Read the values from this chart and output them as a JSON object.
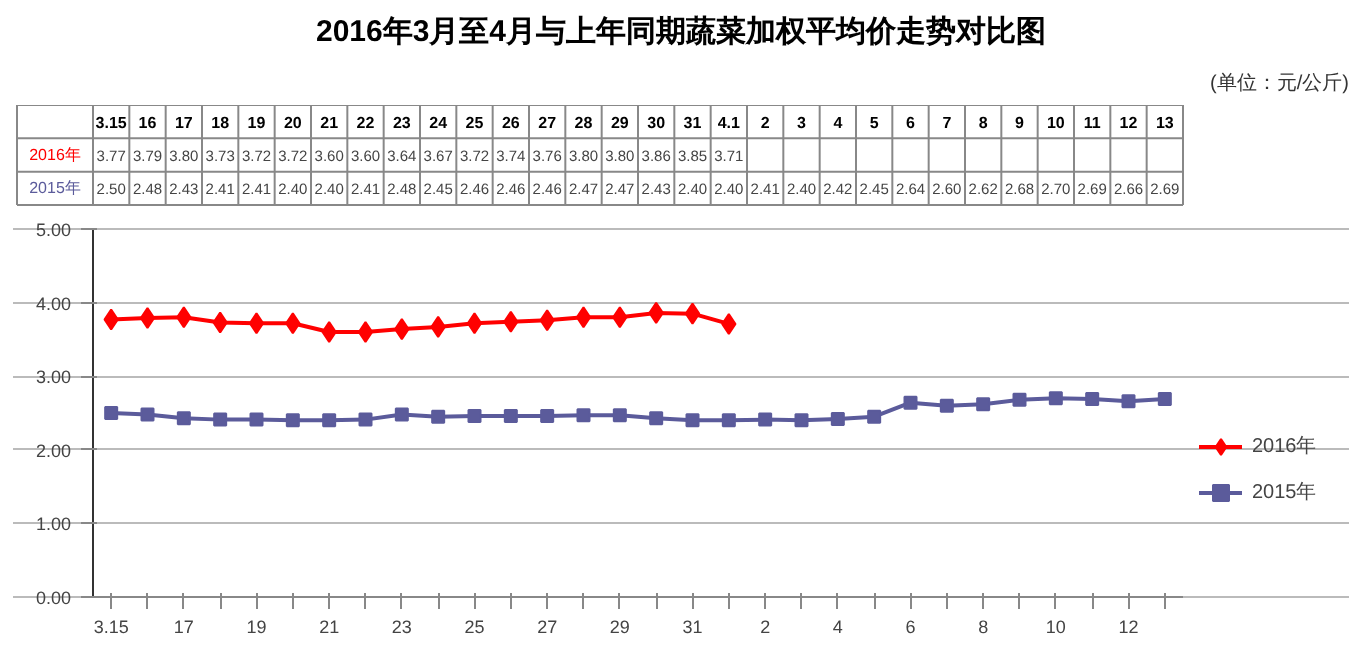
{
  "chart_data": {
    "type": "line",
    "title": "2016年3月至4月与上年同期蔬菜加权平均价走势对比图",
    "subtitle": "(单位：元/公斤)",
    "categories": [
      "3.15",
      "16",
      "17",
      "18",
      "19",
      "20",
      "21",
      "22",
      "23",
      "24",
      "25",
      "26",
      "27",
      "28",
      "29",
      "30",
      "31",
      "4.1",
      "2",
      "3",
      "4",
      "5",
      "6",
      "7",
      "8",
      "9",
      "10",
      "11",
      "12",
      "13"
    ],
    "series": [
      {
        "name": "2016年",
        "color": "#ff0000",
        "marker": "diamond",
        "values": [
          3.77,
          3.79,
          3.8,
          3.73,
          3.72,
          3.72,
          3.6,
          3.6,
          3.64,
          3.67,
          3.72,
          3.74,
          3.76,
          3.8,
          3.8,
          3.86,
          3.85,
          3.71,
          null,
          null,
          null,
          null,
          null,
          null,
          null,
          null,
          null,
          null,
          null,
          null
        ],
        "value_labels": [
          "3.77",
          "3.79",
          "3.80",
          "3.73",
          "3.72",
          "3.72",
          "3.60",
          "3.60",
          "3.64",
          "3.67",
          "3.72",
          "3.74",
          "3.76",
          "3.80",
          "3.80",
          "3.86",
          "3.85",
          "3.71",
          null,
          null,
          null,
          null,
          null,
          null,
          null,
          null,
          null,
          null,
          null,
          null
        ]
      },
      {
        "name": "2015年",
        "color": "#5b5b9b",
        "marker": "square",
        "values": [
          2.5,
          2.48,
          2.43,
          2.41,
          2.41,
          2.4,
          2.4,
          2.41,
          2.48,
          2.45,
          2.46,
          2.46,
          2.46,
          2.47,
          2.47,
          2.43,
          2.4,
          2.4,
          2.41,
          2.4,
          2.42,
          2.45,
          2.64,
          2.6,
          2.62,
          2.68,
          2.7,
          2.69,
          2.66,
          2.69
        ],
        "value_labels": [
          "2.50",
          "2.48",
          "2.43",
          "2.41",
          "2.41",
          "2.40",
          "2.40",
          "2.41",
          "2.48",
          "2.45",
          "2.46",
          "2.46",
          "2.46",
          "2.47",
          "2.47",
          "2.43",
          "2.40",
          "2.40",
          "2.41",
          "2.40",
          "2.42",
          "2.45",
          "2.64",
          "2.60",
          "2.62",
          "2.68",
          "2.70",
          "2.69",
          "2.66",
          "2.69"
        ]
      }
    ],
    "ylim": [
      0,
      5
    ],
    "yticks": [
      {
        "value": 0,
        "label": "0.00"
      },
      {
        "value": 1,
        "label": "1.00"
      },
      {
        "value": 2,
        "label": "2.00"
      },
      {
        "value": 3,
        "label": "3.00"
      },
      {
        "value": 4,
        "label": "4.00"
      },
      {
        "value": 5,
        "label": "5.00"
      }
    ],
    "grid": "y",
    "legend": "right"
  }
}
